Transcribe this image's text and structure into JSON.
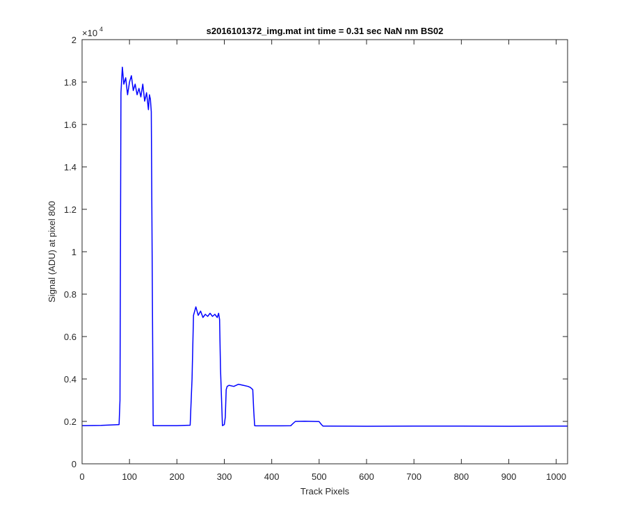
{
  "chart_data": {
    "type": "line",
    "title": "s2016101372_img.mat int time = 0.31 sec  NaN nm BS02",
    "xlabel": "Track Pixels",
    "ylabel": "Signal (ADU) at pixel 800",
    "y_exponent_label": "×10",
    "y_exponent_power": "4",
    "xlim": [
      0,
      1024
    ],
    "ylim": [
      0,
      20000
    ],
    "grid": false,
    "legend": "none",
    "line_color": "#0000ff",
    "x_ticks": [
      0,
      100,
      200,
      300,
      400,
      500,
      600,
      700,
      800,
      900,
      1000
    ],
    "x_tick_labels": [
      "0",
      "100",
      "200",
      "300",
      "400",
      "500",
      "600",
      "700",
      "800",
      "900",
      "1000"
    ],
    "y_ticks": [
      0,
      2000,
      4000,
      6000,
      8000,
      10000,
      12000,
      14000,
      16000,
      18000,
      20000
    ],
    "y_tick_labels": [
      "0",
      "0.2",
      "0.4",
      "0.6",
      "0.8",
      "1",
      "1.2",
      "1.4",
      "1.6",
      "1.8",
      "2"
    ],
    "series": [
      {
        "x": [
          0,
          40,
          78,
          80,
          82,
          85,
          88,
          92,
          96,
          100,
          104,
          108,
          112,
          116,
          120,
          124,
          128,
          132,
          136,
          140,
          142,
          144,
          146,
          150,
          200,
          228,
          232,
          235,
          240,
          245,
          250,
          255,
          260,
          265,
          270,
          275,
          280,
          285,
          288,
          290,
          292,
          296,
          300,
          302,
          304,
          306,
          310,
          320,
          330,
          340,
          350,
          355,
          360,
          362,
          364,
          366,
          380,
          420,
          440,
          445,
          450,
          470,
          500,
          505,
          508,
          520,
          600,
          700,
          800,
          900,
          1000,
          1024
        ],
        "y": [
          1800,
          1810,
          1850,
          3000,
          17500,
          18700,
          17900,
          18200,
          17400,
          18000,
          18300,
          17600,
          17900,
          17400,
          17700,
          17300,
          17900,
          17100,
          17500,
          16700,
          17400,
          17200,
          16600,
          1800,
          1800,
          1820,
          4000,
          7000,
          7400,
          7000,
          7200,
          6900,
          7050,
          6950,
          7100,
          6950,
          7050,
          6900,
          7100,
          6800,
          4500,
          1800,
          1850,
          2200,
          3500,
          3650,
          3700,
          3650,
          3750,
          3700,
          3650,
          3600,
          3500,
          2500,
          1800,
          1790,
          1790,
          1790,
          1795,
          1900,
          2000,
          2010,
          1990,
          1850,
          1780,
          1780,
          1770,
          1780,
          1780,
          1770,
          1780,
          1780
        ]
      }
    ]
  }
}
